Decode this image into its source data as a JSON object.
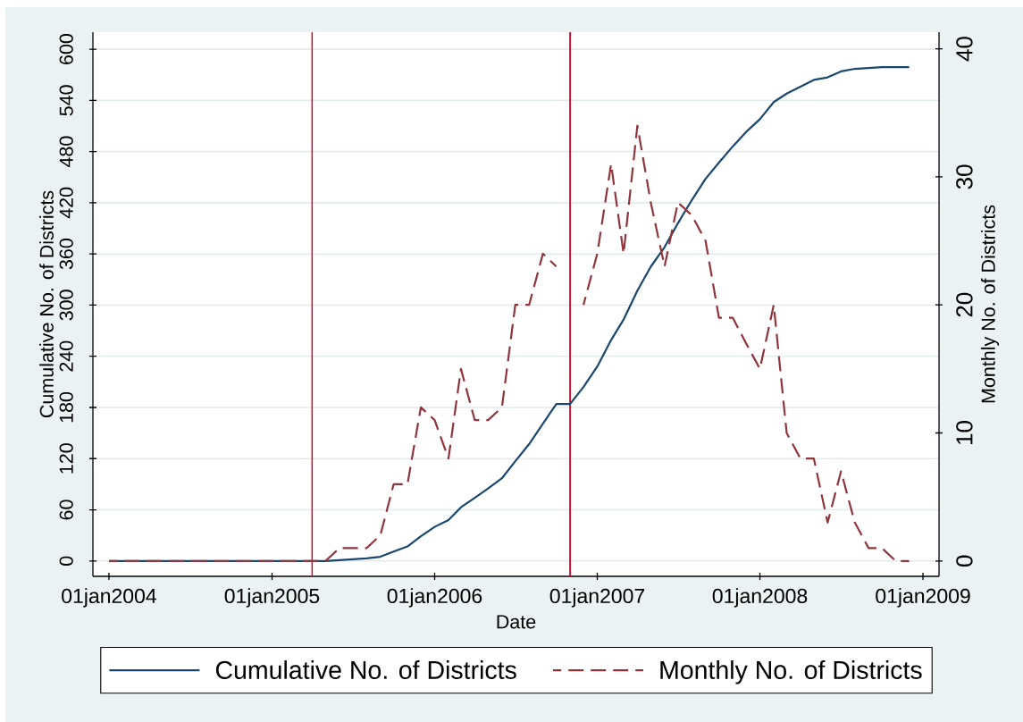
{
  "chart_data": {
    "type": "line",
    "xlabel": "Date",
    "ylabel": "Cumulative No. of Districts",
    "y2label": "Monthly No. of Districts",
    "x": [
      "2004-01",
      "2004-02",
      "2004-03",
      "2004-04",
      "2004-05",
      "2004-06",
      "2004-07",
      "2004-08",
      "2004-09",
      "2004-10",
      "2004-11",
      "2004-12",
      "2005-01",
      "2005-02",
      "2005-03",
      "2005-04",
      "2005-05",
      "2005-06",
      "2005-07",
      "2005-08",
      "2005-09",
      "2005-10",
      "2005-11",
      "2005-12",
      "2006-01",
      "2006-02",
      "2006-03",
      "2006-04",
      "2006-05",
      "2006-06",
      "2006-07",
      "2006-08",
      "2006-09",
      "2006-10",
      "2006-11",
      "2006-12",
      "2007-01",
      "2007-02",
      "2007-03",
      "2007-04",
      "2007-05",
      "2007-06",
      "2007-07",
      "2007-08",
      "2007-09",
      "2007-10",
      "2007-11",
      "2007-12",
      "2008-01",
      "2008-02",
      "2008-03",
      "2008-04",
      "2008-05",
      "2008-06",
      "2008-07",
      "2008-08",
      "2008-09",
      "2008-10",
      "2008-11",
      "2008-12"
    ],
    "series": [
      {
        "name": "Cumulative No. of Districts",
        "color": "#1a476f",
        "line_style": "solid",
        "values": [
          0,
          0,
          0,
          0,
          0,
          0,
          0,
          0,
          0,
          0,
          0,
          0,
          0,
          0,
          0,
          0,
          0,
          1,
          2,
          3,
          5,
          11,
          17,
          29,
          40,
          48,
          63,
          74,
          85,
          97,
          117,
          137,
          161,
          184,
          184,
          204,
          228,
          259,
          283,
          317,
          345,
          368,
          396,
          423,
          448,
          467,
          486,
          503,
          518,
          538,
          548,
          556,
          564,
          567,
          574,
          577,
          578,
          579,
          579,
          579
        ]
      },
      {
        "name": "Monthly No. of Districts",
        "color": "#90353b",
        "line_style": "dashed",
        "axis": "y2",
        "values": [
          0,
          0,
          0,
          0,
          0,
          0,
          0,
          0,
          0,
          0,
          0,
          0,
          0,
          0,
          0,
          0,
          0,
          1,
          1,
          1,
          2,
          6,
          6,
          12,
          11,
          8,
          15,
          11,
          11,
          12,
          20,
          20,
          24,
          23,
          null,
          20,
          24,
          31,
          24,
          34,
          28,
          23,
          28,
          27,
          25,
          19,
          19,
          17,
          15,
          20,
          10,
          8,
          8,
          3,
          7,
          3,
          1,
          1,
          0,
          0
        ]
      }
    ],
    "xlim": [
      "2003-11-26",
      "2009-02-06"
    ],
    "xticks": [
      {
        "value": "2004-01-01",
        "label": "01jan2004"
      },
      {
        "value": "2005-01-01",
        "label": "01jan2005"
      },
      {
        "value": "2006-01-01",
        "label": "01jan2006"
      },
      {
        "value": "2007-01-01",
        "label": "01jan2007"
      },
      {
        "value": "2008-01-01",
        "label": "01jan2008"
      },
      {
        "value": "2009-01-01",
        "label": "01jan2009"
      }
    ],
    "ylim": [
      -18,
      620
    ],
    "yticks": [
      0,
      60,
      120,
      180,
      240,
      300,
      360,
      420,
      480,
      540,
      600
    ],
    "y2lim": [
      -1.2,
      41.3
    ],
    "y2ticks": [
      0,
      10,
      20,
      30,
      40
    ],
    "ref_lines": [
      {
        "axis": "x",
        "value": "2005-04-01",
        "color": "#c8102e"
      },
      {
        "axis": "x",
        "value": "2006-11-01",
        "color": "#c8102e"
      }
    ],
    "grid": "y",
    "legend": "bottom"
  }
}
